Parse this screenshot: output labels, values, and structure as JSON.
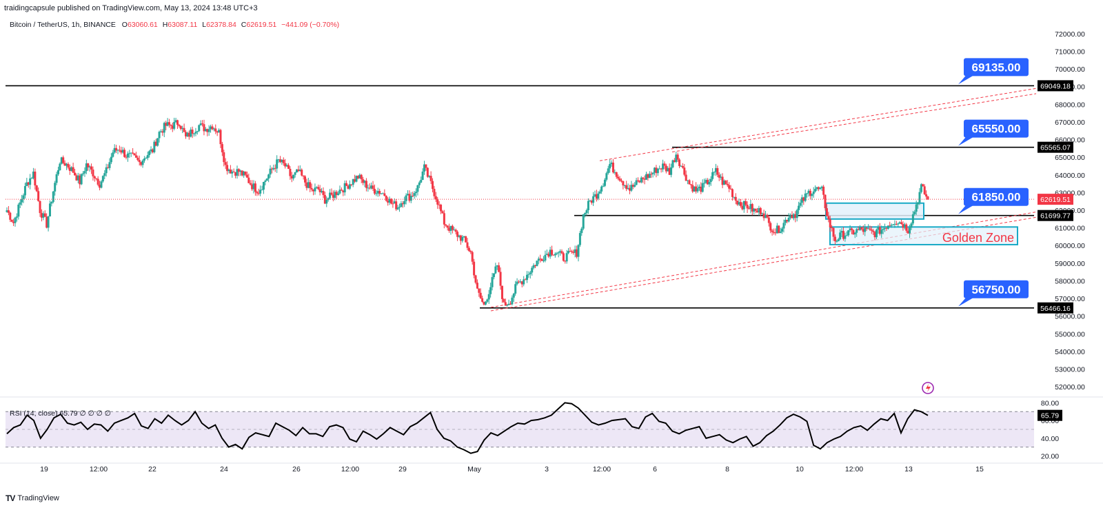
{
  "header": {
    "publisher_line": "traidingcapsule published on TradingView.com, May 13, 2024 13:48 UTC+3"
  },
  "symbol_bar": {
    "name": "Bitcoin / TetherUS, 1h, BINANCE",
    "o_label": "O",
    "o_value": "63060.61",
    "h_label": "H",
    "h_value": "63087.11",
    "l_label": "L",
    "l_value": "62378.84",
    "c_label": "C",
    "c_value": "62619.51",
    "change": "−441.09 (−0.70%)"
  },
  "rsi_legend": "RSI (14, close) 65.79 ∅ ∅ ∅ ∅",
  "brand": {
    "mark": "TV",
    "name": "TradingView"
  },
  "colors": {
    "up": "#26a69a",
    "down": "#f23645",
    "dashed_channel": "#f23645",
    "zone_stroke": "#17a9c6",
    "zone_fill": "#e3f1fb",
    "callout": "#2962ff",
    "golden_zone_text": "#f23645",
    "rsi_band": "#ede7f6"
  },
  "chart_data": [
    {
      "type": "candlestick",
      "title": "Bitcoin / TetherUS, 1h, BINANCE",
      "x_tick_labels": [
        "19",
        "12:00",
        "22",
        "24",
        "26",
        "12:00",
        "29",
        "May",
        "3",
        "12:00",
        "6",
        "8",
        "10",
        "12:00",
        "13",
        "15"
      ],
      "y_tick_labels": [
        "72000.00",
        "71000.00",
        "70000.00",
        "69000.00",
        "68000.00",
        "67000.00",
        "66000.00",
        "65000.00",
        "64000.00",
        "63000.00",
        "62000.00",
        "61000.00",
        "60000.00",
        "59000.00",
        "58000.00",
        "57000.00",
        "56000.00",
        "55000.00",
        "54000.00",
        "53000.00",
        "52000.00"
      ],
      "ylim": [
        51500,
        72500
      ],
      "last_price": "62619.51",
      "horizontal_levels": [
        {
          "value": 69049.18,
          "label": "69049.18"
        },
        {
          "value": 65565.07,
          "label": "65565.07"
        },
        {
          "value": 61699.77,
          "label": "61699.77"
        },
        {
          "value": 56466.16,
          "label": "56466.16"
        }
      ],
      "target_callouts": [
        {
          "value": 69135.0,
          "label": "69135.00"
        },
        {
          "value": 65550.0,
          "label": "65550.00"
        },
        {
          "value": 61850.0,
          "label": "61850.00"
        },
        {
          "value": 56750.0,
          "label": "56750.00"
        }
      ],
      "zone_label": "Golden Zone",
      "series": [
        {
          "close_path": [
            62000,
            61300,
            62400,
            63500,
            64100,
            62000,
            61200,
            63100,
            64800,
            64600,
            64200,
            63600,
            64600,
            64100,
            63500,
            64200,
            65300,
            65500,
            65100,
            65000,
            64700,
            65100,
            65400,
            66400,
            66800,
            66800,
            67000,
            66100,
            66500,
            66800,
            66600,
            66800,
            66400,
            64500,
            64200,
            64200,
            63900,
            63400,
            63100,
            63700,
            64300,
            64800,
            64500,
            63800,
            64200,
            63600,
            63100,
            63200,
            62600,
            62800,
            63100,
            63300,
            63600,
            63900,
            63500,
            63200,
            63100,
            62900,
            62400,
            62200,
            62700,
            62800,
            63300,
            64400,
            63500,
            62500,
            61300,
            60900,
            60600,
            60300,
            59600,
            57400,
            56600,
            57700,
            58900,
            56600,
            56900,
            57800,
            58100,
            58600,
            59100,
            59400,
            59700,
            59600,
            59300,
            59500,
            59600,
            61700,
            62500,
            62900,
            63600,
            64600,
            64100,
            63600,
            63200,
            63500,
            63800,
            64000,
            64300,
            64500,
            64200,
            65200,
            64300,
            63500,
            63100,
            63300,
            63700,
            64200,
            63600,
            63300,
            62600,
            62300,
            62200,
            61900,
            62000,
            61200,
            60800,
            61100,
            61700,
            61800,
            62500,
            63000,
            63200,
            63100,
            61400,
            60300,
            60600,
            60700,
            60800,
            60900,
            60800,
            60700,
            60900,
            61200,
            61400,
            61300,
            60900,
            62000,
            63300,
            62600
          ]
        },
        {
          "name": "RSI (14, close)",
          "last_value": "65.79",
          "ylim": [
            15,
            85
          ],
          "y_tick_labels": [
            "80.00",
            "60.00",
            "40.00",
            "20.00"
          ],
          "band": [
            30,
            70
          ],
          "values": [
            45,
            52,
            55,
            66,
            60,
            40,
            50,
            63,
            67,
            57,
            55,
            58,
            50,
            56,
            55,
            48,
            57,
            60,
            63,
            68,
            54,
            51,
            62,
            57,
            66,
            60,
            55,
            60,
            70,
            57,
            51,
            55,
            40,
            30,
            33,
            28,
            41,
            46,
            44,
            42,
            57,
            53,
            49,
            43,
            52,
            45,
            45,
            42,
            53,
            55,
            52,
            39,
            36,
            48,
            44,
            39,
            45,
            52,
            48,
            44,
            53,
            57,
            63,
            69,
            50,
            40,
            37,
            30,
            27,
            23,
            25,
            38,
            46,
            43,
            48,
            53,
            57,
            56,
            60,
            61,
            63,
            66,
            73,
            80,
            79,
            74,
            66,
            58,
            55,
            57,
            60,
            61,
            62,
            53,
            51,
            64,
            68,
            59,
            57,
            48,
            45,
            49,
            51,
            53,
            40,
            42,
            44,
            38,
            35,
            39,
            42,
            31,
            35,
            43,
            48,
            55,
            63,
            67,
            64,
            59,
            32,
            28,
            35,
            39,
            42,
            48,
            52,
            54,
            49,
            56,
            62,
            60,
            68,
            46,
            62,
            72,
            70,
            65.79
          ]
        }
      ]
    }
  ]
}
